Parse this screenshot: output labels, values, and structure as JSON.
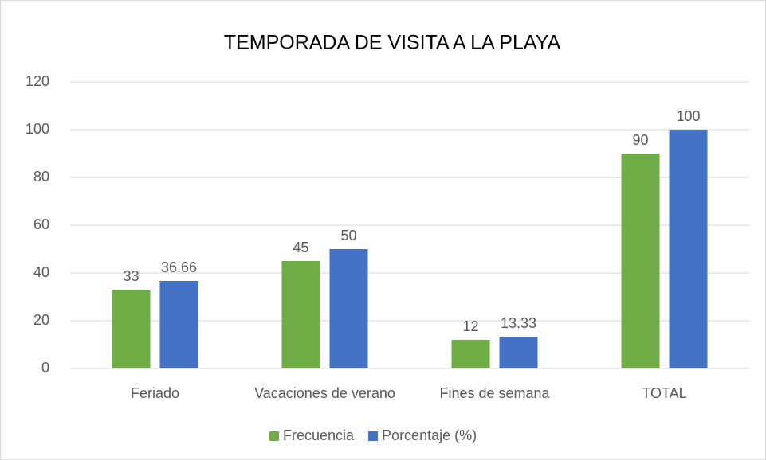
{
  "chart_data": {
    "type": "bar",
    "title": "TEMPORADA DE VISITA A LA PLAYA",
    "categories": [
      "Feriado",
      "Vacaciones de verano",
      "Fines de semana",
      "TOTAL"
    ],
    "series": [
      {
        "name": "Frecuencia",
        "color": "#70ad47",
        "values": [
          33,
          45,
          12,
          90
        ]
      },
      {
        "name": "Porcentaje (%)",
        "color": "#4472c4",
        "values": [
          36.66,
          50,
          13.33,
          100
        ]
      }
    ],
    "ylim": [
      0,
      120
    ],
    "yticks": [
      0,
      20,
      40,
      60,
      80,
      100,
      120
    ],
    "grid": true,
    "legend": "bottom"
  }
}
